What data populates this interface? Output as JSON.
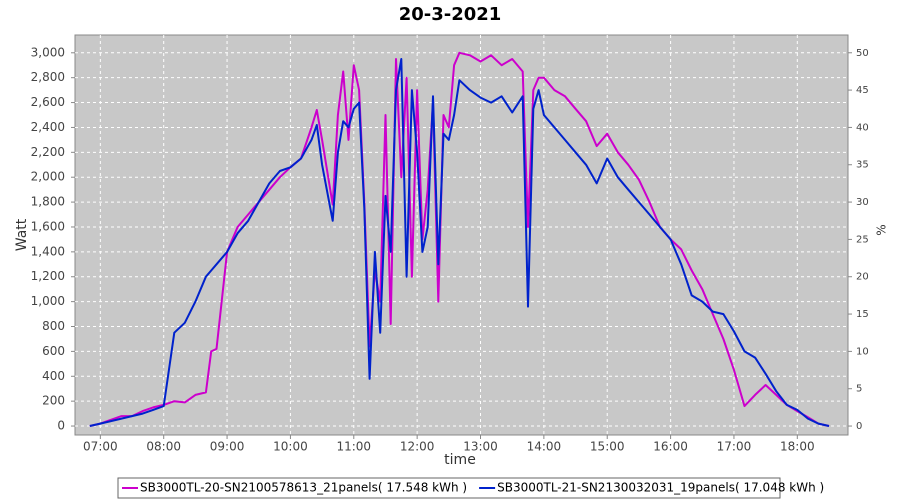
{
  "chart_data": {
    "type": "line",
    "title": "20-3-2021",
    "x_label": "time",
    "y_label": "Watt",
    "y2_label": "%",
    "x": [
      "06:50",
      "07:00",
      "07:10",
      "07:20",
      "07:30",
      "07:40",
      "07:50",
      "08:00",
      "08:10",
      "08:20",
      "08:30",
      "08:40",
      "08:45",
      "08:50",
      "09:00",
      "09:10",
      "09:20",
      "09:30",
      "09:40",
      "09:50",
      "10:00",
      "10:10",
      "10:20",
      "10:25",
      "10:30",
      "10:40",
      "10:45",
      "10:50",
      "10:55",
      "11:00",
      "11:05",
      "11:10",
      "11:15",
      "11:20",
      "11:25",
      "11:30",
      "11:35",
      "11:40",
      "11:45",
      "11:50",
      "11:55",
      "12:00",
      "12:05",
      "12:10",
      "12:15",
      "12:20",
      "12:25",
      "12:30",
      "12:35",
      "12:40",
      "12:50",
      "13:00",
      "13:10",
      "13:20",
      "13:30",
      "13:40",
      "13:45",
      "13:50",
      "13:55",
      "14:00",
      "14:10",
      "14:20",
      "14:30",
      "14:40",
      "14:50",
      "15:00",
      "15:10",
      "15:20",
      "15:30",
      "15:40",
      "15:50",
      "16:00",
      "16:10",
      "16:20",
      "16:30",
      "16:40",
      "16:50",
      "17:00",
      "17:10",
      "17:20",
      "17:30",
      "17:40",
      "17:50",
      "18:00",
      "18:10",
      "18:20",
      "18:30"
    ],
    "series": [
      {
        "name": "SB3000TL-20-SN2100578613_21panels( 17.548 kWh )",
        "color": "#cc00cc",
        "values": [
          0,
          20,
          50,
          80,
          80,
          120,
          150,
          170,
          200,
          190,
          250,
          270,
          600,
          620,
          1400,
          1600,
          1700,
          1800,
          1900,
          2000,
          2080,
          2150,
          2400,
          2540,
          2300,
          1780,
          2500,
          2850,
          2300,
          2900,
          2700,
          1800,
          640,
          1250,
          1000,
          2500,
          820,
          2950,
          2000,
          2800,
          1200,
          2700,
          1500,
          1900,
          2600,
          1000,
          2500,
          2400,
          2900,
          3000,
          2980,
          2930,
          2980,
          2900,
          2950,
          2850,
          1600,
          2700,
          2800,
          2800,
          2700,
          2650,
          2550,
          2450,
          2250,
          2350,
          2200,
          2100,
          1980,
          1800,
          1600,
          1500,
          1420,
          1250,
          1100,
          900,
          700,
          450,
          160,
          250,
          330,
          250,
          170,
          120,
          70,
          20,
          0
        ]
      },
      {
        "name": "SB3000TL-21-SN2130032031_19panels( 17.048 kWh )",
        "color": "#0022cc",
        "values": [
          0,
          20,
          40,
          60,
          80,
          100,
          130,
          160,
          750,
          830,
          1000,
          1200,
          1250,
          1300,
          1400,
          1550,
          1650,
          1800,
          1950,
          2050,
          2080,
          2150,
          2300,
          2420,
          2100,
          1650,
          2200,
          2450,
          2400,
          2550,
          2600,
          1750,
          380,
          1400,
          750,
          1850,
          1400,
          2700,
          2950,
          1200,
          2700,
          2200,
          1400,
          1600,
          2650,
          1300,
          2350,
          2300,
          2500,
          2780,
          2700,
          2640,
          2600,
          2650,
          2520,
          2650,
          960,
          2550,
          2700,
          2500,
          2400,
          2300,
          2200,
          2100,
          1950,
          2150,
          2000,
          1900,
          1800,
          1700,
          1600,
          1500,
          1300,
          1050,
          1000,
          920,
          900,
          760,
          600,
          550,
          420,
          280,
          170,
          130,
          60,
          20,
          0
        ]
      }
    ],
    "xlim": [
      "06:36",
      "18:48"
    ],
    "xticks": [
      "07:00",
      "08:00",
      "09:00",
      "10:00",
      "11:00",
      "12:00",
      "13:00",
      "14:00",
      "15:00",
      "16:00",
      "17:00",
      "18:00"
    ],
    "ylim": [
      -72,
      3143
    ],
    "yticks": [
      0,
      200,
      400,
      600,
      800,
      {
        "value": 1000,
        "label": "1,000"
      },
      {
        "value": 1200,
        "label": "1,200"
      },
      {
        "value": 1400,
        "label": "1,400"
      },
      {
        "value": 1600,
        "label": "1,600"
      },
      {
        "value": 1800,
        "label": "1,800"
      },
      {
        "value": 2000,
        "label": "2,000"
      },
      {
        "value": 2200,
        "label": "2,200"
      },
      {
        "value": 2400,
        "label": "2,400"
      },
      {
        "value": 2600,
        "label": "2,600"
      },
      {
        "value": 2800,
        "label": "2,800"
      },
      {
        "value": 3000,
        "label": "3,000"
      }
    ],
    "y2lim": [
      -1.2,
      52.38
    ],
    "y2ticks": [
      0,
      5,
      10,
      15,
      20,
      25,
      30,
      35,
      40,
      45,
      50
    ],
    "grid": true,
    "legend": "bottom"
  }
}
